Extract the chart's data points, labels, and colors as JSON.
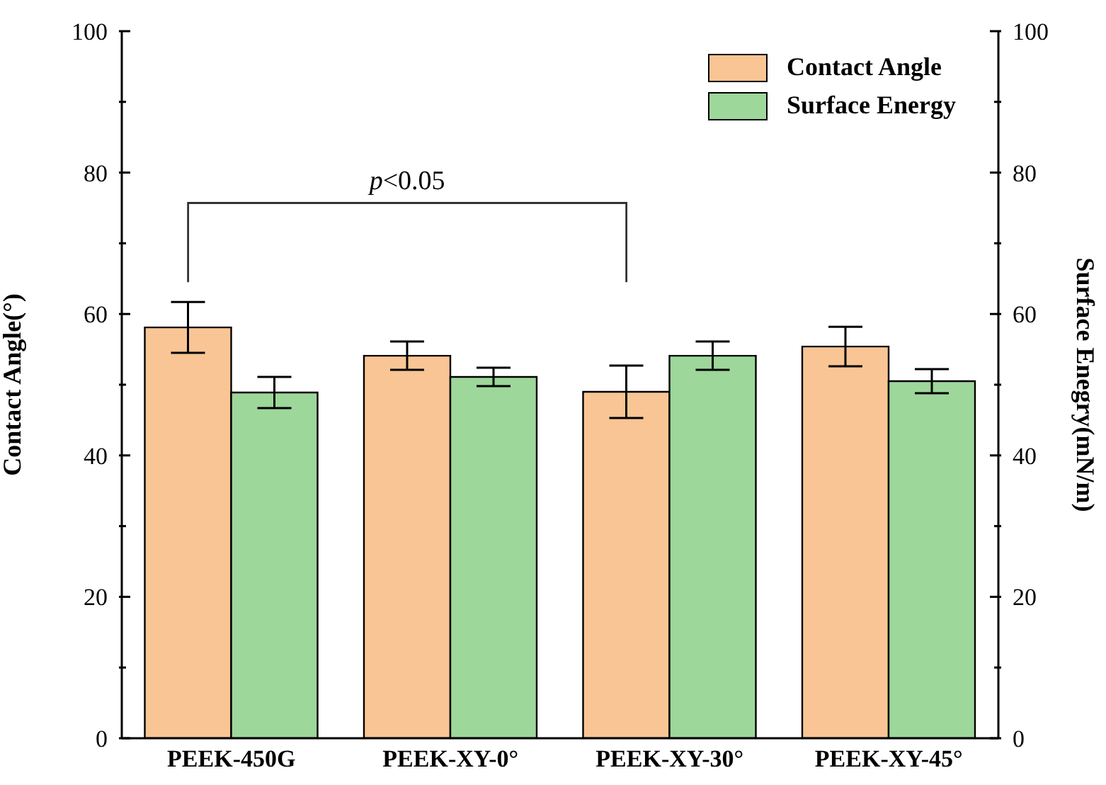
{
  "chart_data": {
    "type": "bar",
    "ylabel": "Contact Angle(°)",
    "y2label": "Surface Enegry(mN/m)",
    "categories": [
      "PEEK-450G",
      "PEEK-XY-0°",
      "PEEK-XY-30°",
      "PEEK-XY-45°"
    ],
    "series": [
      {
        "name": "Contact Angle",
        "color": "#f9c594",
        "values": [
          58.1,
          54.1,
          49.0,
          55.4
        ],
        "errors": [
          3.6,
          2.0,
          3.7,
          2.8
        ]
      },
      {
        "name": "Surface Energy",
        "color": "#9dd79a",
        "axis": "y2",
        "values": [
          48.9,
          51.1,
          54.1,
          50.5
        ],
        "errors": [
          2.2,
          1.3,
          2.0,
          1.7
        ]
      }
    ],
    "ylim": [
      0,
      100
    ],
    "yticks": [
      0,
      {
        "value": 10,
        "label": null
      },
      20,
      {
        "value": 30,
        "label": null
      },
      40,
      {
        "value": 50,
        "label": null
      },
      60,
      {
        "value": 70,
        "label": null
      },
      80,
      {
        "value": 90,
        "label": null
      },
      100
    ],
    "y2lim": [
      0,
      100
    ],
    "y2ticks": [
      0,
      {
        "value": 10,
        "label": null
      },
      20,
      {
        "value": 30,
        "label": null
      },
      40,
      {
        "value": 50,
        "label": null
      },
      60,
      {
        "value": 70,
        "label": null
      },
      80,
      {
        "value": 90,
        "label": null
      },
      100
    ],
    "annotations": [
      "p<0.05"
    ],
    "legend": "top right",
    "grid": false
  }
}
